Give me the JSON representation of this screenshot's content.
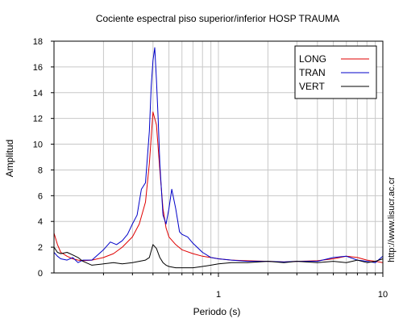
{
  "chart_data": {
    "type": "line",
    "title": "Cociente espectral piso superior/inferior  HOSP TRAUMA",
    "xlabel": "Periodo (s)",
    "ylabel": "Amplitud",
    "x_scale": "log",
    "xlim": [
      0.1,
      10
    ],
    "ylim": [
      0,
      18
    ],
    "x_tick_labels": [
      {
        "value": 1,
        "label": "1"
      },
      {
        "value": 10,
        "label": "10"
      }
    ],
    "y_ticks": [
      0,
      2,
      4,
      6,
      8,
      10,
      12,
      14,
      16,
      18
    ],
    "grid": true,
    "legend_position": "top-right",
    "watermark": "http://www.lisucr.ac.cr",
    "series": [
      {
        "name": "LONG",
        "color": "#e00000",
        "x": [
          0.1,
          0.105,
          0.11,
          0.12,
          0.13,
          0.14,
          0.15,
          0.17,
          0.2,
          0.23,
          0.26,
          0.3,
          0.33,
          0.36,
          0.38,
          0.4,
          0.42,
          0.44,
          0.46,
          0.48,
          0.5,
          0.55,
          0.6,
          0.7,
          0.8,
          0.9,
          1.0,
          1.2,
          1.5,
          2.0,
          2.5,
          3.0,
          4.0,
          5.0,
          6.0,
          7.0,
          8.0,
          9.0,
          10.0
        ],
        "values": [
          3.1,
          2.2,
          1.6,
          1.3,
          1.1,
          1.0,
          0.95,
          1.0,
          1.2,
          1.5,
          2.0,
          2.8,
          3.8,
          5.5,
          8.5,
          12.5,
          11.5,
          8.0,
          5.0,
          3.5,
          2.8,
          2.2,
          1.8,
          1.5,
          1.3,
          1.2,
          1.1,
          1.0,
          0.95,
          0.9,
          0.85,
          0.9,
          0.95,
          1.1,
          1.3,
          1.2,
          1.0,
          0.9,
          0.8
        ]
      },
      {
        "name": "TRAN",
        "color": "#0000c8",
        "x": [
          0.1,
          0.105,
          0.11,
          0.12,
          0.13,
          0.14,
          0.15,
          0.17,
          0.2,
          0.22,
          0.24,
          0.26,
          0.28,
          0.3,
          0.32,
          0.34,
          0.36,
          0.37,
          0.38,
          0.39,
          0.4,
          0.41,
          0.42,
          0.43,
          0.44,
          0.46,
          0.48,
          0.5,
          0.52,
          0.55,
          0.58,
          0.6,
          0.65,
          0.7,
          0.8,
          0.9,
          1.0,
          1.2,
          1.5,
          2.0,
          2.5,
          3.0,
          4.0,
          5.0,
          6.0,
          7.0,
          8.0,
          9.0,
          10.0
        ],
        "values": [
          1.6,
          1.3,
          1.1,
          1.0,
          1.2,
          0.8,
          1.0,
          1.0,
          1.8,
          2.4,
          2.2,
          2.5,
          3.0,
          3.8,
          4.5,
          6.5,
          7.0,
          9.0,
          11.0,
          14.5,
          16.5,
          17.5,
          15.0,
          12.0,
          8.5,
          4.5,
          3.8,
          5.0,
          6.5,
          5.0,
          3.2,
          3.0,
          2.8,
          2.3,
          1.6,
          1.2,
          1.1,
          1.0,
          0.9,
          0.9,
          0.85,
          0.9,
          0.9,
          1.2,
          1.3,
          1.0,
          0.9,
          0.8,
          1.3
        ]
      },
      {
        "name": "VERT",
        "color": "#000000",
        "x": [
          0.1,
          0.105,
          0.11,
          0.12,
          0.13,
          0.14,
          0.15,
          0.17,
          0.2,
          0.23,
          0.26,
          0.3,
          0.33,
          0.36,
          0.38,
          0.4,
          0.42,
          0.44,
          0.46,
          0.48,
          0.5,
          0.55,
          0.6,
          0.7,
          0.8,
          0.9,
          1.0,
          1.2,
          1.5,
          2.0,
          2.5,
          3.0,
          4.0,
          5.0,
          6.0,
          7.0,
          8.0,
          9.0,
          10.0
        ],
        "values": [
          2.0,
          1.6,
          1.5,
          1.6,
          1.4,
          1.2,
          0.9,
          0.6,
          0.7,
          0.8,
          0.7,
          0.8,
          0.9,
          1.0,
          1.2,
          2.2,
          1.9,
          1.2,
          0.8,
          0.6,
          0.5,
          0.4,
          0.4,
          0.4,
          0.5,
          0.6,
          0.7,
          0.8,
          0.8,
          0.9,
          0.8,
          0.9,
          0.8,
          0.9,
          0.8,
          1.0,
          0.8,
          0.9,
          1.1
        ]
      }
    ]
  }
}
